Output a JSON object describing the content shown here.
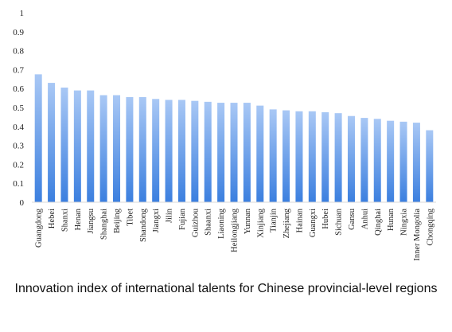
{
  "chart_data": {
    "type": "bar",
    "title": "Innovation index of international talents for Chinese provincial-level regions",
    "xlabel": "",
    "ylabel": "",
    "ylim": [
      0,
      1
    ],
    "yticks": [
      "0",
      "0.1",
      "0.2",
      "0.3",
      "0.4",
      "0.5",
      "0.6",
      "0.7",
      "0.8",
      "0.9",
      "1"
    ],
    "grid": false,
    "legend": "none",
    "bar_color_top": "#a9c8f5",
    "bar_color_bottom": "#3b7fdf",
    "categories": [
      "Guangdong",
      "Hebei",
      "Shanxi",
      "Henan",
      "Jiangsu",
      "Shanghai",
      "Beijing",
      "Tibet",
      "Shandong",
      "Jiangxi",
      "Jilin",
      "Fujian",
      "Guizhou",
      "Shaanxi",
      "Liaoning",
      "Heilongjiang",
      "Yunnan",
      "Xinjiang",
      "Tianjin",
      "Zhejiang",
      "Hainan",
      "Guangxi",
      "Hubei",
      "Sichuan",
      "Gansu",
      "Anhui",
      "Qinghai",
      "Hunan",
      "Ningxia",
      "Inner Mongolia",
      "Chongqing"
    ],
    "values": [
      0.675,
      0.63,
      0.605,
      0.59,
      0.59,
      0.565,
      0.565,
      0.555,
      0.555,
      0.545,
      0.54,
      0.54,
      0.535,
      0.53,
      0.525,
      0.525,
      0.525,
      0.51,
      0.49,
      0.485,
      0.48,
      0.48,
      0.475,
      0.47,
      0.455,
      0.445,
      0.44,
      0.43,
      0.425,
      0.42,
      0.38
    ]
  }
}
